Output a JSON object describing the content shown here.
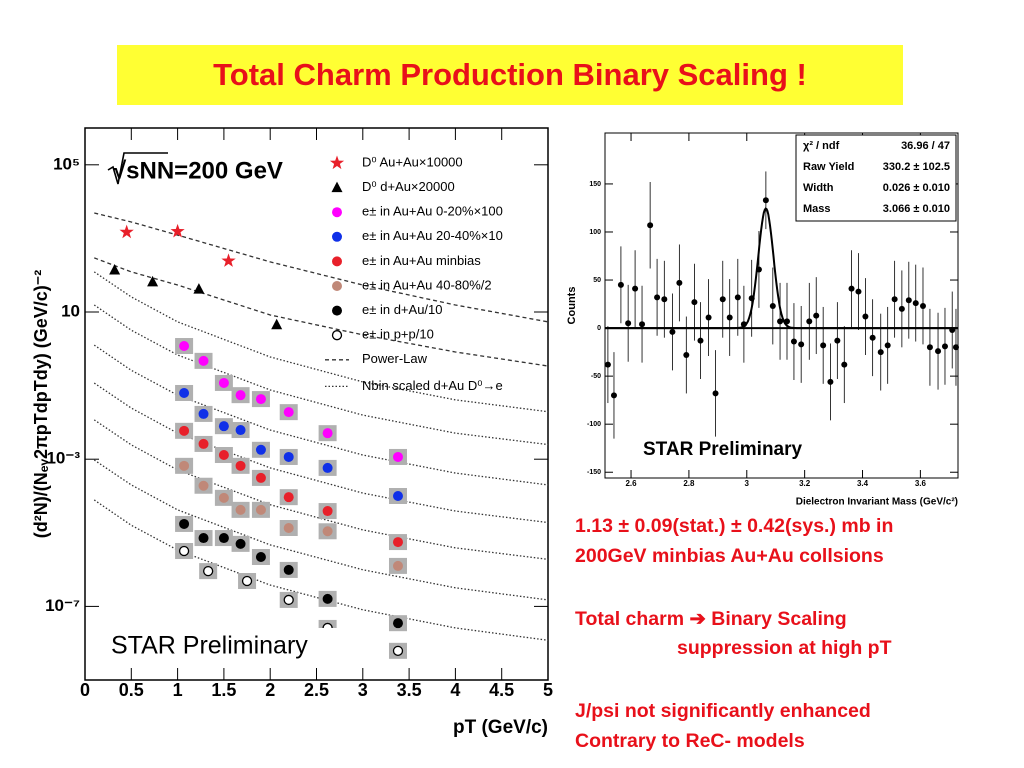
{
  "title": "Total Charm Production Binary Scaling !",
  "chart_data": [
    {
      "type": "scatter",
      "log_y": true,
      "legend": "upper right",
      "sys_boxes": true,
      "xlim": [
        0,
        5
      ],
      "ylim": [
        1e-09,
        1000000
      ],
      "xticks": [
        0,
        0.5,
        1,
        1.5,
        2,
        2.5,
        3,
        3.5,
        4,
        4.5,
        5
      ],
      "yticks": [
        {
          "value": 100000,
          "label": "10⁵"
        },
        10,
        {
          "value": 0.001,
          "label": "10⁻³"
        },
        {
          "value": 1e-07,
          "label": "10⁻⁷"
        }
      ],
      "xlabel": "pT (GeV/c)",
      "ylabel": "(d²N)/(Nₑᵥ2πpTdpTdy) (GeV/c)⁻²",
      "annotations": [
        "√sNN=200 GeV",
        "STAR Preliminary"
      ],
      "series": [
        {
          "name": "D⁰ Au+Au×10000",
          "color": "#e8202a",
          "marker": "star",
          "x": [
            0.45,
            1.0,
            1.55
          ],
          "values": [
            1480,
            1550,
            245
          ]
        },
        {
          "name": "D⁰ d+Au×20000",
          "color": "#000000",
          "marker": "triangle",
          "x": [
            0.32,
            0.73,
            1.23,
            2.07
          ],
          "values": [
            138,
            66,
            42,
            4.5
          ]
        },
        {
          "name": "e± in Au+Au 0-20%×100",
          "color": "#ff00ff",
          "marker": "circle",
          "x": [
            1.07,
            1.28,
            1.5,
            1.68,
            1.9,
            2.2,
            2.62,
            3.38
          ],
          "values": [
            1.19,
            0.47,
            0.118,
            0.055,
            0.043,
            0.019,
            0.0051,
            0.00115
          ]
        },
        {
          "name": "e± in Au+Au 20-40%×10",
          "color": "#1030e8",
          "marker": "circle",
          "x": [
            1.07,
            1.28,
            1.5,
            1.68,
            1.9,
            2.2,
            2.62,
            3.38
          ],
          "values": [
            0.063,
            0.017,
            0.0079,
            0.0062,
            0.0018,
            0.00115,
            0.00058,
            0.0001
          ]
        },
        {
          "name": "e± in Au+Au minbias",
          "color": "#e8202a",
          "marker": "circle",
          "x": [
            1.07,
            1.28,
            1.5,
            1.68,
            1.9,
            2.2,
            2.62,
            3.38
          ],
          "values": [
            0.0059,
            0.0026,
            0.0013,
            0.00066,
            0.00031,
            9.3e-05,
            3.9e-05,
            5.6e-06
          ]
        },
        {
          "name": "e± in Au+Au 40-80%/2",
          "color": "#c08878",
          "marker": "circle",
          "x": [
            1.07,
            1.28,
            1.5,
            1.68,
            1.9,
            2.2,
            2.62,
            3.38
          ],
          "values": [
            0.00066,
            0.00019,
            8.9e-05,
            4.2e-05,
            4.2e-05,
            1.35e-05,
            1.1e-05,
            1.26e-06
          ]
        },
        {
          "name": "e± in d+Au/10",
          "color": "#000000",
          "marker": "circle",
          "x": [
            1.07,
            1.28,
            1.5,
            1.68,
            1.9,
            2.2,
            2.62,
            3.38
          ],
          "values": [
            1.74e-05,
            7.2e-06,
            7.2e-06,
            5e-06,
            2.2e-06,
            9.8e-07,
            1.6e-07,
            3.5e-08
          ]
        },
        {
          "name": "e± in p+p/10",
          "color": "#000000",
          "marker": "open",
          "x": [
            1.07,
            1.33,
            1.75,
            2.2,
            2.62,
            3.38
          ],
          "values": [
            3.2e-06,
            9.1e-07,
            4.9e-07,
            1.5e-07,
            2.6e-08,
            6.2e-09
          ]
        }
      ],
      "curves": [
        {
          "name": "Power-Law",
          "style": "dashed",
          "x": [
            0.1,
            0.5,
            1,
            2,
            3,
            4,
            5
          ],
          "lines": [
            [
              4900,
              2800,
              1230,
              230,
              54,
              15.5,
              5.4
            ],
            [
              295,
              123,
              54,
              8.3,
              2.4,
              0.82,
              0.34
            ]
          ]
        },
        {
          "name": "Nbin scaled d+Au D⁰→e",
          "style": "dotted",
          "x": [
            0.1,
            0.5,
            1,
            2,
            3,
            4,
            5
          ],
          "lines": [
            [
              123,
              25.7,
              5.4,
              0.6,
              0.126,
              0.041,
              0.0195
            ],
            [
              15.5,
              3.2,
              0.68,
              0.076,
              0.0158,
              0.0051,
              0.0025
            ],
            [
              1.26,
              0.26,
              0.055,
              0.0062,
              0.0013,
              0.00042,
              0.0002
            ],
            [
              0.117,
              0.0245,
              0.0051,
              0.00058,
              0.00012,
              3.9e-05,
              1.9e-05
            ],
            [
              0.0117,
              0.00245,
              0.00051,
              5.8e-05,
              1.2e-05,
              3.9e-06,
              1.9e-06
            ],
            [
              0.00095,
              0.0002,
              4.2e-05,
              4.7e-06,
              9.9e-07,
              3.2e-07,
              1.5e-07
            ],
            [
              7.8e-05,
              1.6e-05,
              3.4e-06,
              3.8e-07,
              8.1e-08,
              2.6e-08,
              1.2e-08
            ]
          ]
        }
      ]
    },
    {
      "type": "scatter",
      "color": "#000000",
      "xlim": [
        2.51,
        3.73
      ],
      "ylim": [
        -156,
        203
      ],
      "xticks": [
        2.6,
        2.8,
        3,
        3.2,
        3.4,
        3.6
      ],
      "yticks": [
        -150,
        -100,
        -50,
        0,
        50,
        100,
        150
      ],
      "xlabel": "Dielectron Invariant Mass (GeV/c²)",
      "ylabel": "Counts",
      "annotations": [
        "STAR Preliminary"
      ],
      "stats": [
        [
          "χ² / ndf",
          "36.96 / 47"
        ],
        [
          "Raw Yield",
          "330.2 ± 102.5"
        ],
        [
          "Width",
          "0.026 ± 0.010"
        ],
        [
          "Mass",
          "3.066 ± 0.010"
        ]
      ],
      "x": [
        2.52,
        2.541,
        2.565,
        2.59,
        2.614,
        2.638,
        2.666,
        2.69,
        2.715,
        2.743,
        2.767,
        2.791,
        2.819,
        2.84,
        2.868,
        2.892,
        2.917,
        2.941,
        2.969,
        2.99,
        3.017,
        3.042,
        3.066,
        3.09,
        3.115,
        3.139,
        3.163,
        3.188,
        3.216,
        3.24,
        3.264,
        3.289,
        3.313,
        3.337,
        3.362,
        3.386,
        3.41,
        3.435,
        3.463,
        3.487,
        3.511,
        3.536,
        3.56,
        3.584,
        3.609,
        3.633,
        3.661,
        3.685,
        3.71,
        3.723
      ],
      "values": [
        -38,
        -70,
        45,
        5,
        41,
        4,
        107,
        32,
        30,
        -4,
        47,
        -28,
        27,
        -13,
        11,
        -68,
        30,
        11,
        32,
        4,
        31,
        61,
        133,
        23,
        7,
        7,
        -14,
        -17,
        7,
        13,
        -18,
        -56,
        -13,
        -38,
        41,
        38,
        12,
        -10,
        -25,
        -18,
        30,
        20,
        29,
        26,
        23,
        -20,
        -24,
        -19,
        -2,
        -20
      ],
      "errors": [
        40,
        45,
        40,
        40,
        40,
        40,
        45,
        40,
        40,
        40,
        40,
        40,
        40,
        40,
        40,
        45,
        40,
        40,
        40,
        40,
        40,
        40,
        30,
        40,
        40,
        40,
        40,
        40,
        40,
        40,
        40,
        40,
        40,
        40,
        40,
        40,
        40,
        40,
        40,
        40,
        40,
        40,
        40,
        40,
        40,
        40,
        40,
        40,
        40,
        40
      ]
    }
  ],
  "notes": [
    "1.13 ± 0.09(stat.) ± 0.42(sys.) mb in",
    "200GeV minbias Au+Au collsions",
    "Total charm ➔ Binary Scaling",
    "suppression at high pT",
    "J/psi not significantly enhanced",
    "Contrary to ReC- models"
  ]
}
